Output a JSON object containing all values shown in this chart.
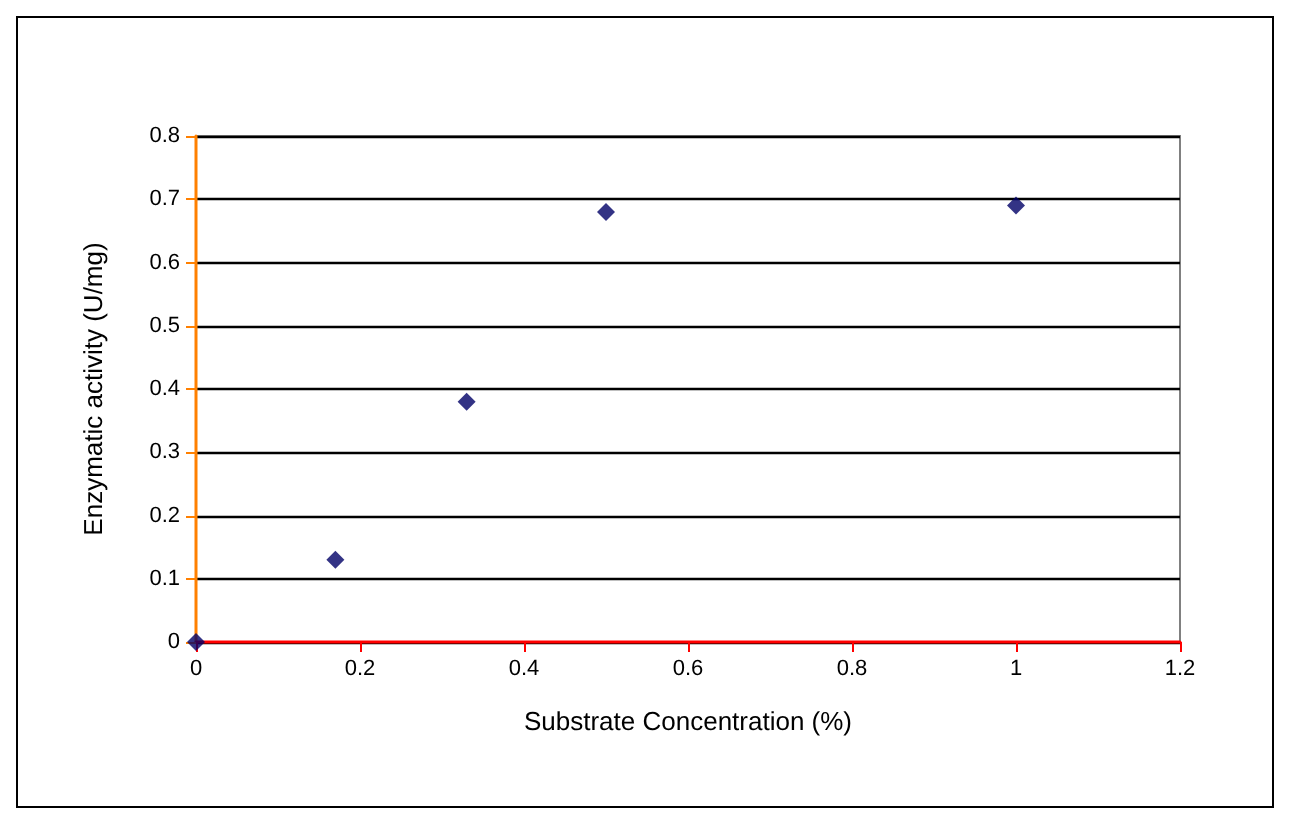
{
  "chart_data": {
    "type": "scatter",
    "xlabel": "Substrate Concentration (%)",
    "ylabel": "Enzymatic activity (U/mg)",
    "x": [
      0,
      0.17,
      0.33,
      0.5,
      1
    ],
    "values": [
      0,
      0.13,
      0.38,
      0.68,
      0.69
    ],
    "color": "#000066",
    "marker": "diamond",
    "xlim": [
      0,
      1.2
    ],
    "xticks": [
      0,
      0.2,
      0.4,
      0.6,
      0.8,
      1,
      1.2
    ],
    "ylim": [
      0,
      0.8
    ],
    "yticks": [
      0,
      0.1,
      0.2,
      0.3,
      0.4,
      0.5,
      0.6,
      0.7,
      0.8
    ],
    "grid": "y"
  }
}
